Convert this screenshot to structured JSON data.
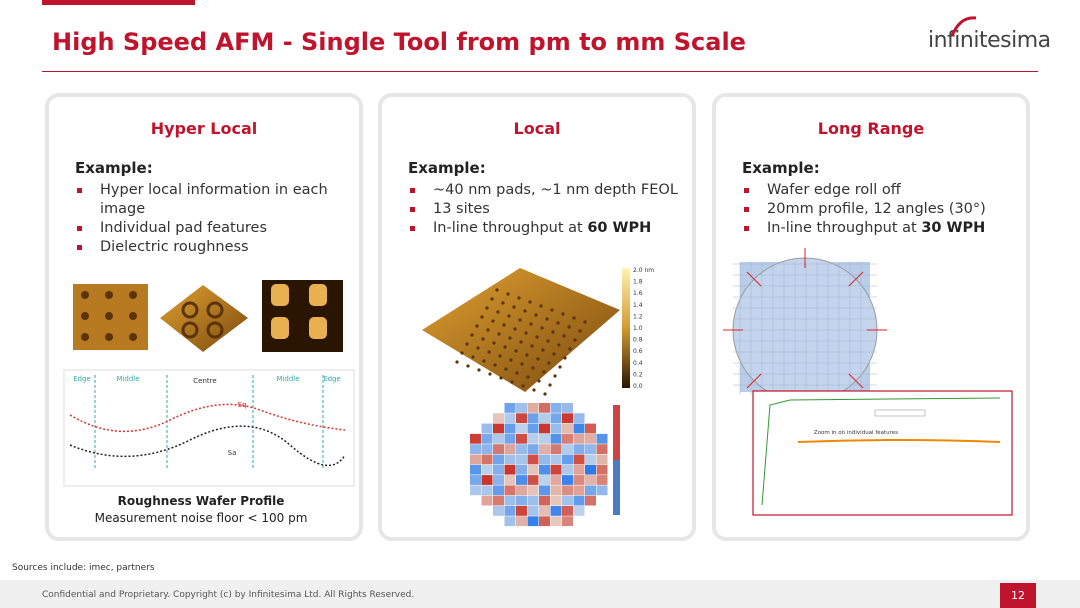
{
  "header": {
    "title": "High Speed AFM - Single Tool from pm to mm Scale",
    "logo": "infinitesima"
  },
  "panels": [
    {
      "title": "Hyper Local",
      "example": "Example:",
      "bullets": [
        {
          "text": "Hyper local information in each image"
        },
        {
          "text": "Individual pad features"
        },
        {
          "text": "Dielectric roughness"
        }
      ],
      "figure_labels": [
        "Edge",
        "Middle",
        "Centre",
        "Middle",
        "Edge",
        "Sq",
        "Sa"
      ],
      "caption": {
        "title": "Roughness Wafer Profile",
        "text": "Measurement noise floor < 100 pm"
      }
    },
    {
      "title": "Local",
      "example": "Example:",
      "bullets": [
        {
          "text": "~40 nm pads, ~1 nm depth FEOL"
        },
        {
          "text": "13 sites"
        },
        {
          "text": "In-line throughput at ",
          "bold": "60 WPH"
        }
      ],
      "figure_labels": [
        "2.0 nm",
        "1.8",
        "1.6",
        "1.4",
        "1.2",
        "1.0",
        "0.8",
        "0.6",
        "0.4",
        "0.2",
        "0.0"
      ]
    },
    {
      "title": "Long Range",
      "example": "Example:",
      "bullets": [
        {
          "text": "Wafer edge roll off"
        },
        {
          "text": "20mm profile, 12 angles (30°)"
        },
        {
          "text": "In-line throughput at ",
          "bold": "30 WPH"
        }
      ],
      "figure_labels": [
        "Zoom in on individual features"
      ]
    }
  ],
  "footer": {
    "sources": "Sources include: imec, partners",
    "confidential": "Confidential and Proprietary. Copyright (c) by Infinitesima Ltd. All Rights Reserved.",
    "page": "12"
  }
}
